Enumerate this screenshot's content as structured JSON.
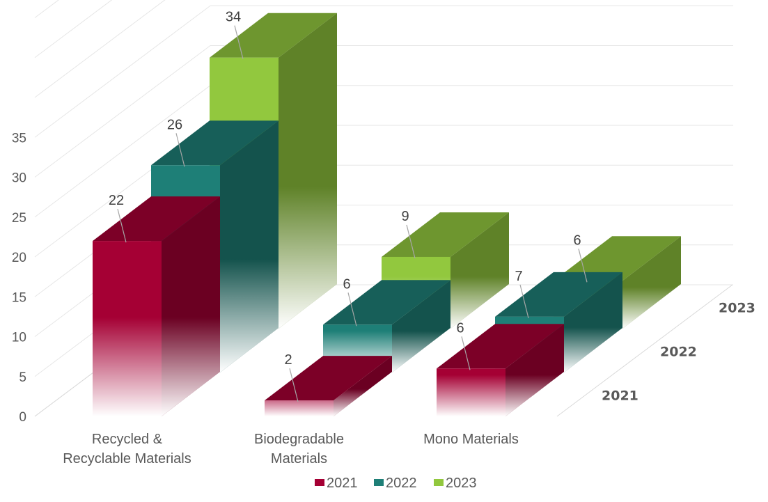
{
  "chart_data": {
    "type": "bar",
    "subtype": "3d-column",
    "categories": [
      "Recycled &\nRecyclable Materials",
      "Biodegradable\nMaterials",
      "Mono Materials"
    ],
    "series": [
      {
        "name": "2021",
        "values": [
          22,
          2,
          6
        ],
        "color": "#A50034"
      },
      {
        "name": "2022",
        "values": [
          26,
          6,
          7
        ],
        "color": "#1E7F77"
      },
      {
        "name": "2023",
        "values": [
          34,
          9,
          6
        ],
        "color": "#92C83E"
      }
    ],
    "yticks": [
      0,
      5,
      10,
      15,
      20,
      25,
      30,
      35
    ],
    "ylim": [
      0,
      35
    ],
    "depth_labels": [
      "2021",
      "2022",
      "2023"
    ],
    "legend_position": "bottom",
    "grid": true
  }
}
